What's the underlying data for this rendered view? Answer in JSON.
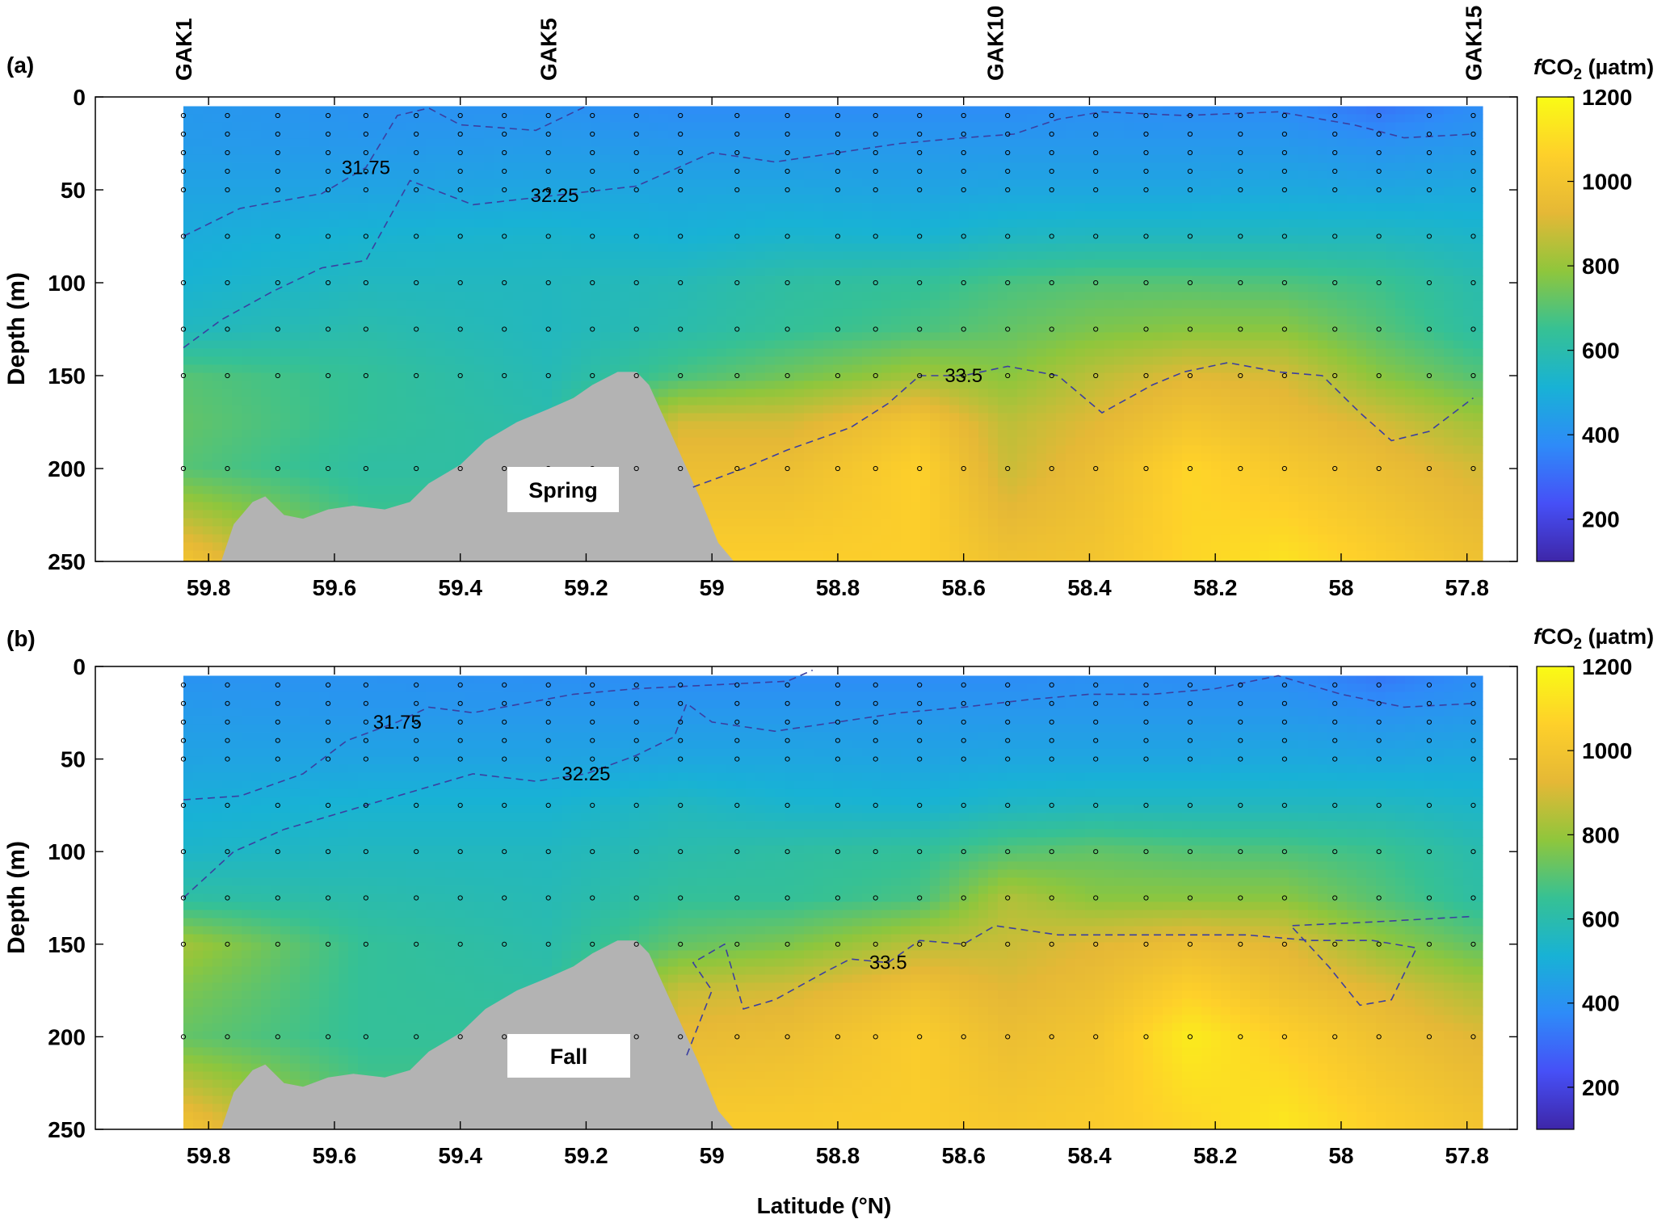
{
  "figure": {
    "xlabel": "Latitude (°N)",
    "colorbar": {
      "label_prefix": "f",
      "label_main": "CO",
      "label_sub": "2",
      "label_unit": " (µatm)",
      "range": [
        100,
        1200
      ],
      "ticks": [
        "200",
        "400",
        "600",
        "800",
        "1000",
        "1200"
      ],
      "colormap": [
        "#3e26a8",
        "#4650f7",
        "#2e8bf8",
        "#18b2d5",
        "#36c194",
        "#8fc63c",
        "#e5b836",
        "#fed02a",
        "#f9fb15"
      ]
    },
    "topo_color": "#b3b3b3",
    "station_marker_color": "#000000"
  },
  "chart_data": [
    {
      "type": "heatmap",
      "panel_label": "(a)",
      "season": "Spring",
      "ylabel": "Depth (m)",
      "xlabel": "",
      "xlim": [
        59.98,
        57.72
      ],
      "ylim": [
        0,
        250
      ],
      "y_inverted": true,
      "x_ticks": [
        "59.8",
        "59.6",
        "59.4",
        "59.2",
        "59",
        "58.8",
        "58.6",
        "58.4",
        "58.2",
        "58",
        "57.8"
      ],
      "y_ticks": [
        "0",
        "50",
        "100",
        "150",
        "200",
        "250"
      ],
      "stations": [
        {
          "name": "GAK1",
          "lat": 59.84
        },
        {
          "name": "GAK5",
          "lat": 59.26
        },
        {
          "name": "GAK10",
          "lat": 58.55
        },
        {
          "name": "GAK15",
          "lat": 57.79
        }
      ],
      "sample_latitudes": [
        59.84,
        59.77,
        59.69,
        59.61,
        59.55,
        59.47,
        59.4,
        59.33,
        59.26,
        59.19,
        59.12,
        59.05,
        58.96,
        58.88,
        58.8,
        58.74,
        58.67,
        58.6,
        58.53,
        58.46,
        58.39,
        58.31,
        58.24,
        58.16,
        58.09,
        58.01,
        57.94,
        57.86,
        57.79
      ],
      "sample_depths": [
        0,
        10,
        20,
        30,
        40,
        50,
        75,
        100,
        125,
        150,
        200,
        250
      ],
      "fco2_field_uatm": {
        "latitudes": [
          59.84,
          59.55,
          59.26,
          59.05,
          58.88,
          58.67,
          58.53,
          58.39,
          58.24,
          58.09,
          57.94,
          57.79
        ],
        "depths": [
          5,
          25,
          50,
          75,
          100,
          125,
          150,
          175,
          200,
          250
        ],
        "values": [
          [
            420,
            400,
            400,
            380,
            380,
            380,
            380,
            390,
            380,
            380,
            320,
            380
          ],
          [
            430,
            420,
            430,
            420,
            420,
            420,
            420,
            420,
            420,
            420,
            400,
            420
          ],
          [
            460,
            460,
            470,
            470,
            470,
            460,
            470,
            470,
            470,
            480,
            470,
            480
          ],
          [
            490,
            520,
            530,
            510,
            530,
            520,
            550,
            560,
            560,
            560,
            560,
            540
          ],
          [
            520,
            560,
            560,
            580,
            620,
            640,
            680,
            700,
            700,
            690,
            660,
            600
          ],
          [
            560,
            600,
            560,
            600,
            640,
            680,
            720,
            760,
            780,
            780,
            700,
            620
          ],
          [
            700,
            640,
            580,
            680,
            740,
            820,
            780,
            860,
            920,
            900,
            780,
            700
          ],
          [
            720,
            640,
            600,
            900,
            900,
            1000,
            860,
            920,
            1000,
            960,
            900,
            820
          ],
          [
            700,
            620,
            620,
            960,
            960,
            1060,
            880,
            960,
            1080,
            1020,
            960,
            900
          ],
          [
            1000,
            700,
            700,
            1050,
            1050,
            1050,
            980,
            1000,
            1080,
            1120,
            1050,
            980
          ]
        ]
      },
      "salinity_contours": [
        {
          "label": "31.75",
          "points": [
            [
              59.84,
              75
            ],
            [
              59.75,
              60
            ],
            [
              59.62,
              52
            ],
            [
              59.55,
              38
            ],
            [
              59.5,
              10
            ],
            [
              59.45,
              6
            ],
            [
              59.4,
              15
            ],
            [
              59.28,
              18
            ],
            [
              59.2,
              5
            ]
          ]
        },
        {
          "label": "32.25",
          "points": [
            [
              59.84,
              135
            ],
            [
              59.78,
              120
            ],
            [
              59.7,
              105
            ],
            [
              59.62,
              92
            ],
            [
              59.55,
              88
            ],
            [
              59.48,
              45
            ],
            [
              59.38,
              58
            ],
            [
              59.25,
              53
            ],
            [
              59.12,
              48
            ],
            [
              59.0,
              30
            ],
            [
              58.9,
              35
            ],
            [
              58.8,
              30
            ],
            [
              58.7,
              25
            ],
            [
              58.6,
              22
            ],
            [
              58.52,
              20
            ],
            [
              58.45,
              12
            ],
            [
              58.38,
              8
            ],
            [
              58.25,
              10
            ],
            [
              58.1,
              8
            ],
            [
              57.98,
              15
            ],
            [
              57.9,
              22
            ],
            [
              57.79,
              20
            ]
          ]
        },
        {
          "label": "33.5",
          "points": [
            [
              59.03,
              210
            ],
            [
              58.95,
              200
            ],
            [
              58.88,
              190
            ],
            [
              58.78,
              178
            ],
            [
              58.72,
              165
            ],
            [
              58.67,
              150
            ],
            [
              58.6,
              150
            ],
            [
              58.53,
              145
            ],
            [
              58.45,
              150
            ],
            [
              58.38,
              170
            ],
            [
              58.3,
              155
            ],
            [
              58.25,
              148
            ],
            [
              58.18,
              143
            ],
            [
              58.1,
              148
            ],
            [
              58.03,
              150
            ],
            [
              57.97,
              170
            ],
            [
              57.92,
              185
            ],
            [
              57.86,
              180
            ],
            [
              57.79,
              162
            ]
          ]
        }
      ]
    },
    {
      "type": "heatmap",
      "panel_label": "(b)",
      "season": "Fall",
      "ylabel": "Depth (m)",
      "xlabel": "Latitude (°N)",
      "xlim": [
        59.98,
        57.72
      ],
      "ylim": [
        0,
        250
      ],
      "y_inverted": true,
      "x_ticks": [
        "59.8",
        "59.6",
        "59.4",
        "59.2",
        "59",
        "58.8",
        "58.6",
        "58.4",
        "58.2",
        "58",
        "57.8"
      ],
      "y_ticks": [
        "0",
        "50",
        "100",
        "150",
        "200",
        "250"
      ],
      "sample_latitudes": [
        59.84,
        59.77,
        59.69,
        59.61,
        59.55,
        59.47,
        59.4,
        59.33,
        59.26,
        59.19,
        59.12,
        59.05,
        58.96,
        58.88,
        58.8,
        58.74,
        58.67,
        58.6,
        58.53,
        58.46,
        58.39,
        58.31,
        58.24,
        58.16,
        58.09,
        58.01,
        57.94,
        57.86,
        57.79
      ],
      "sample_depths": [
        0,
        10,
        20,
        30,
        40,
        50,
        75,
        100,
        125,
        150,
        200,
        250
      ],
      "fco2_field_uatm": {
        "latitudes": [
          59.84,
          59.55,
          59.26,
          59.05,
          58.88,
          58.67,
          58.53,
          58.39,
          58.24,
          58.09,
          57.94,
          57.79
        ],
        "depths": [
          5,
          25,
          50,
          75,
          100,
          125,
          150,
          175,
          200,
          250
        ],
        "values": [
          [
            400,
            400,
            390,
            380,
            380,
            380,
            380,
            390,
            380,
            380,
            330,
            380
          ],
          [
            430,
            420,
            420,
            420,
            420,
            420,
            420,
            420,
            420,
            420,
            400,
            420
          ],
          [
            460,
            460,
            460,
            470,
            470,
            460,
            470,
            470,
            470,
            480,
            470,
            480
          ],
          [
            500,
            520,
            520,
            560,
            530,
            520,
            550,
            560,
            560,
            560,
            560,
            540
          ],
          [
            540,
            560,
            560,
            600,
            620,
            640,
            700,
            720,
            700,
            690,
            660,
            600
          ],
          [
            620,
            600,
            580,
            640,
            640,
            680,
            840,
            780,
            780,
            780,
            700,
            620
          ],
          [
            820,
            640,
            600,
            720,
            760,
            860,
            880,
            920,
            960,
            920,
            800,
            720
          ],
          [
            760,
            640,
            620,
            880,
            900,
            980,
            920,
            960,
            1060,
            980,
            920,
            840
          ],
          [
            720,
            640,
            640,
            940,
            960,
            1040,
            960,
            1000,
            1150,
            1060,
            980,
            920
          ],
          [
            1000,
            700,
            700,
            1040,
            1040,
            1040,
            1020,
            1040,
            1080,
            1140,
            1060,
            1000
          ]
        ]
      },
      "salinity_contours": [
        {
          "label": "31.75",
          "points": [
            [
              59.84,
              72
            ],
            [
              59.75,
              70
            ],
            [
              59.65,
              58
            ],
            [
              59.58,
              40
            ],
            [
              59.5,
              30
            ],
            [
              59.45,
              22
            ],
            [
              59.38,
              25
            ],
            [
              59.3,
              20
            ],
            [
              59.22,
              15
            ],
            [
              59.12,
              12
            ],
            [
              59.0,
              10
            ],
            [
              58.88,
              8
            ],
            [
              58.84,
              2
            ]
          ]
        },
        {
          "label": "32.25",
          "points": [
            [
              59.84,
              125
            ],
            [
              59.76,
              100
            ],
            [
              59.68,
              88
            ],
            [
              59.6,
              80
            ],
            [
              59.52,
              72
            ],
            [
              59.45,
              65
            ],
            [
              59.38,
              58
            ],
            [
              59.28,
              62
            ],
            [
              59.2,
              58
            ],
            [
              59.12,
              48
            ],
            [
              59.06,
              38
            ],
            [
              59.04,
              20
            ],
            [
              59.0,
              30
            ],
            [
              58.9,
              35
            ],
            [
              58.8,
              30
            ],
            [
              58.7,
              25
            ],
            [
              58.6,
              22
            ],
            [
              58.5,
              18
            ],
            [
              58.4,
              15
            ],
            [
              58.3,
              15
            ],
            [
              58.2,
              12
            ],
            [
              58.1,
              5
            ],
            [
              58.0,
              15
            ],
            [
              57.9,
              22
            ],
            [
              57.79,
              20
            ]
          ]
        },
        {
          "label": "33.5",
          "points": [
            [
              59.04,
              210
            ],
            [
              59.0,
              175
            ],
            [
              59.03,
              160
            ],
            [
              58.98,
              150
            ],
            [
              58.95,
              185
            ],
            [
              58.9,
              180
            ],
            [
              58.82,
              165
            ],
            [
              58.78,
              158
            ],
            [
              58.72,
              160
            ],
            [
              58.67,
              148
            ],
            [
              58.6,
              150
            ],
            [
              58.55,
              140
            ],
            [
              58.45,
              145
            ],
            [
              58.3,
              145
            ],
            [
              58.15,
              145
            ],
            [
              58.05,
              148
            ],
            [
              57.95,
              148
            ],
            [
              57.88,
              152
            ],
            [
              57.92,
              180
            ],
            [
              57.97,
              183
            ],
            [
              58.02,
              162
            ],
            [
              58.08,
              140
            ],
            [
              57.95,
              138
            ],
            [
              57.79,
              135
            ]
          ]
        }
      ]
    }
  ]
}
